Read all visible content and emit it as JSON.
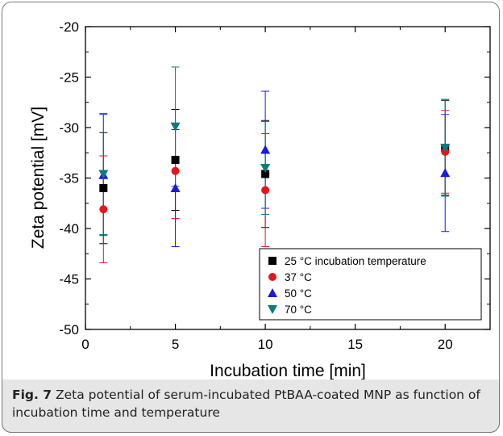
{
  "caption": {
    "label": "Fig. 7",
    "text": "Zeta potential of serum-incubated PtBAA-coated MNP as function of incubation time and temperature"
  },
  "chart_data": {
    "type": "scatter",
    "xlabel": "Incubation time [min]",
    "ylabel": "Zeta potential [mV]",
    "xlim": [
      0,
      22.5
    ],
    "ylim": [
      -50,
      -20
    ],
    "xticks": [
      0,
      5,
      10,
      15,
      20
    ],
    "yticks": [
      -50,
      -45,
      -40,
      -35,
      -30,
      -25,
      -20
    ],
    "grid": false,
    "legend_position": "bottom-right",
    "series": [
      {
        "name": "25 °C incubation temperature",
        "marker": "square",
        "color": "#000000",
        "x": [
          1,
          5,
          10,
          20
        ],
        "y": [
          -36.0,
          -33.2,
          -34.6,
          -32.0
        ],
        "err": [
          5.5,
          5.0,
          5.3,
          4.7
        ]
      },
      {
        "name": "37 °C",
        "marker": "circle",
        "color": "#e8141b",
        "x": [
          1,
          5,
          10,
          20
        ],
        "y": [
          -38.1,
          -34.3,
          -36.2,
          -32.4
        ],
        "err": [
          5.3,
          4.7,
          5.6,
          4.1
        ]
      },
      {
        "name": "50 °C",
        "marker": "triangle-up",
        "color": "#1a1adb",
        "x": [
          1,
          5,
          10,
          20
        ],
        "y": [
          -34.7,
          -36.0,
          -32.2,
          -34.5
        ],
        "err": [
          6.0,
          5.8,
          5.8,
          5.8
        ]
      },
      {
        "name": "70 °C",
        "marker": "triangle-down",
        "color": "#0e7a7d",
        "x": [
          1,
          5,
          10,
          20
        ],
        "y": [
          -34.6,
          -29.9,
          -34.0,
          -32.0
        ],
        "err": [
          6.0,
          5.9,
          4.6,
          4.8
        ]
      }
    ]
  }
}
